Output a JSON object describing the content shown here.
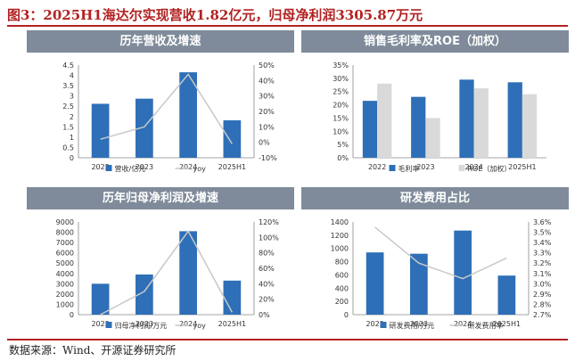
{
  "figure": {
    "title": "图3：2025H1海达尔实现营收1.82亿元，归母净利润3305.87万元",
    "source": "数据来源：Wind、开源证券研究所"
  },
  "colors": {
    "bar_blue": "#2e6fb7",
    "bar_gray": "#d9d9d9",
    "line_gray": "#c8c8c8",
    "header": "#7f8b9a",
    "title_red": "#b22222"
  },
  "chart_data": [
    {
      "id": "revenue",
      "type": "bar",
      "title": "历年营收及增速",
      "categories": [
        "2022",
        "2023",
        "2024",
        "2025H1"
      ],
      "series": [
        {
          "name": "营收/亿元",
          "kind": "bar",
          "axis": "left",
          "values": [
            2.62,
            2.87,
            4.15,
            1.82
          ]
        },
        {
          "name": "yoy",
          "kind": "line",
          "axis": "right",
          "values": [
            0.02,
            0.1,
            0.44,
            -0.01
          ]
        }
      ],
      "left_axis": {
        "min": 0,
        "max": 4.5,
        "ticks": [
          "0",
          "0.5",
          "1",
          "1.5",
          "2",
          "2.5",
          "3",
          "3.5",
          "4",
          "4.5"
        ]
      },
      "right_axis": {
        "min": -0.1,
        "max": 0.5,
        "ticks": [
          "-10%",
          "0%",
          "10%",
          "20%",
          "30%",
          "40%",
          "50%"
        ]
      }
    },
    {
      "id": "margin",
      "type": "bar",
      "title": "销售毛利率及ROE（加权）",
      "categories": [
        "2022",
        "2023",
        "2024",
        "2025H1"
      ],
      "series": [
        {
          "name": "毛利率",
          "kind": "bar",
          "axis": "left",
          "values": [
            0.215,
            0.23,
            0.295,
            0.285
          ]
        },
        {
          "name": "ROE（加权）",
          "kind": "bar2",
          "axis": "left",
          "values": [
            0.28,
            0.15,
            0.262,
            0.24
          ]
        }
      ],
      "left_axis": {
        "min": 0,
        "max": 0.35,
        "ticks": [
          "0%",
          "5%",
          "10%",
          "15%",
          "20%",
          "25%",
          "30%",
          "35%"
        ]
      }
    },
    {
      "id": "profit",
      "type": "bar",
      "title": "历年归母净利润及增速",
      "categories": [
        "2022",
        "2023",
        "2024",
        "2025H1"
      ],
      "series": [
        {
          "name": "归母净利润/万元",
          "kind": "bar",
          "axis": "left",
          "values": [
            3000,
            3900,
            8100,
            3306
          ]
        },
        {
          "name": "yoy",
          "kind": "line",
          "axis": "right",
          "values": [
            0.0,
            0.3,
            1.08,
            0.03
          ]
        }
      ],
      "left_axis": {
        "min": 0,
        "max": 9000,
        "ticks": [
          "0",
          "1000",
          "2000",
          "3000",
          "4000",
          "5000",
          "6000",
          "7000",
          "8000",
          "9000"
        ]
      },
      "right_axis": {
        "min": 0,
        "max": 1.2,
        "ticks": [
          "0%",
          "20%",
          "40%",
          "60%",
          "80%",
          "100%",
          "120%"
        ]
      }
    },
    {
      "id": "rd",
      "type": "bar",
      "title": "研发费用占比",
      "categories": [
        "2022",
        "2023",
        "2024",
        "2025H1"
      ],
      "series": [
        {
          "name": "研发费用/万元",
          "kind": "bar",
          "axis": "left",
          "values": [
            940,
            920,
            1270,
            590
          ]
        },
        {
          "name": "研发费用率",
          "kind": "line",
          "axis": "right",
          "values": [
            0.0355,
            0.032,
            0.0305,
            0.0325
          ]
        }
      ],
      "left_axis": {
        "min": 0,
        "max": 1400,
        "ticks": [
          "0",
          "200",
          "400",
          "600",
          "800",
          "1000",
          "1200",
          "1400"
        ]
      },
      "right_axis": {
        "min": 0.027,
        "max": 0.036,
        "ticks": [
          "2.7%",
          "2.8%",
          "2.9%",
          "3.0%",
          "3.1%",
          "3.2%",
          "3.3%",
          "3.4%",
          "3.5%",
          "3.6%"
        ]
      }
    }
  ]
}
